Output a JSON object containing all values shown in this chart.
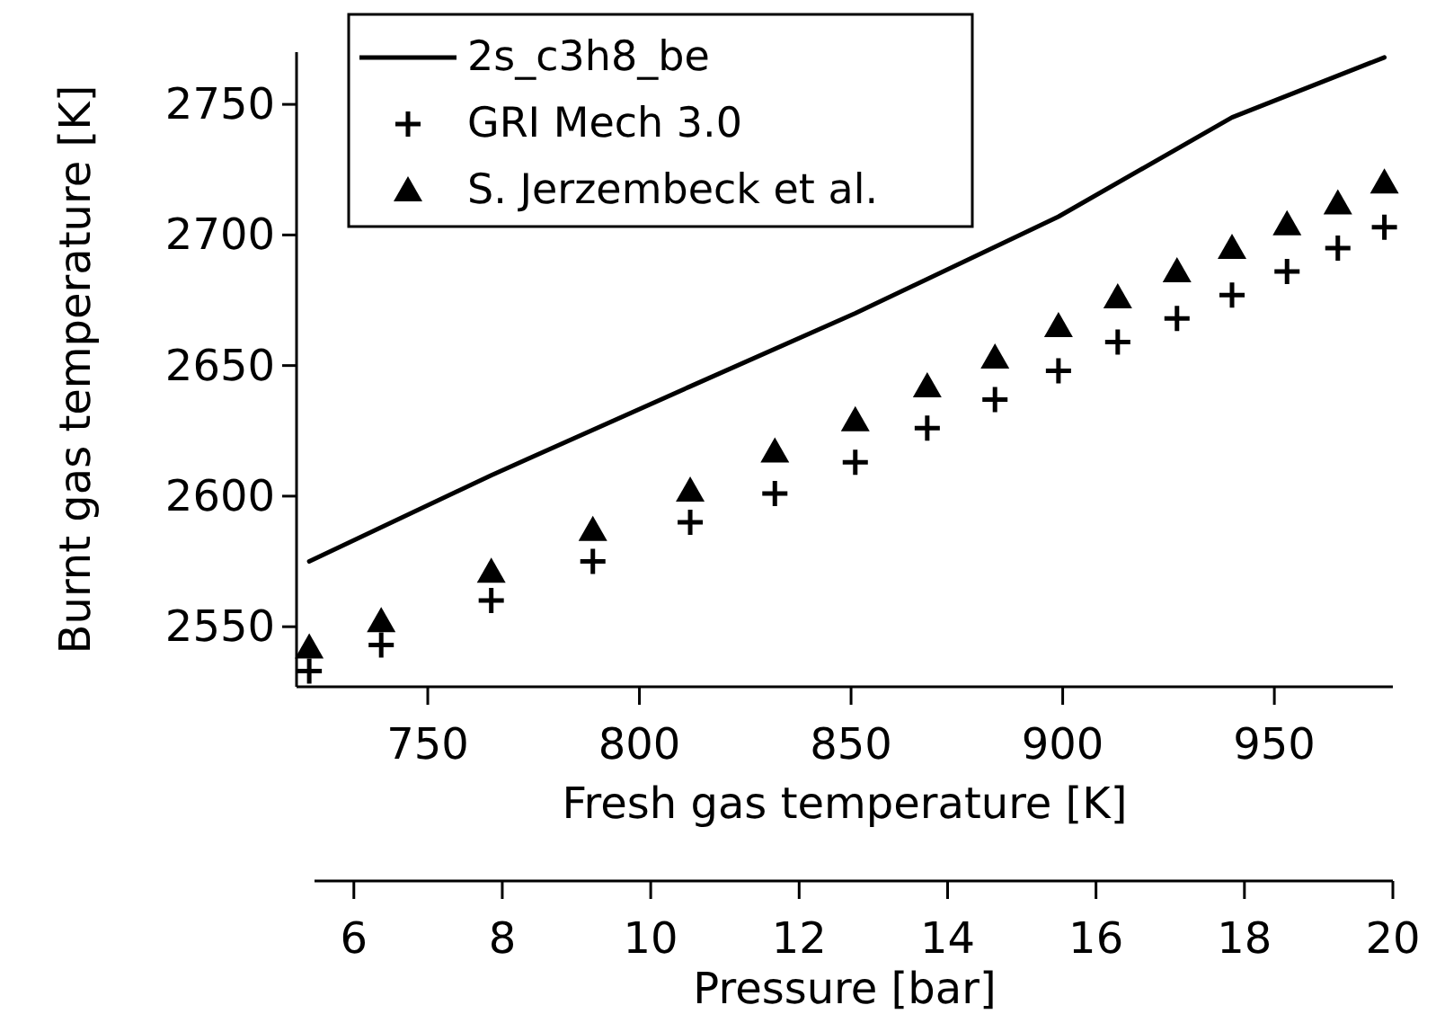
{
  "chart_data": {
    "type": "scatter",
    "xlabel": "Fresh gas temperature [K]",
    "ylabel": "Burnt gas temperature [K]",
    "x2label": "Pressure [bar]",
    "xlim": [
      719,
      978
    ],
    "xticks": [
      750,
      800,
      850,
      900,
      950
    ],
    "ylim": [
      2527,
      2770
    ],
    "yticks": [
      2550,
      2600,
      2650,
      2700,
      2750
    ],
    "x2lim": [
      5.47,
      20
    ],
    "x2ticks": [
      6,
      8,
      10,
      12,
      14,
      16,
      18,
      20
    ],
    "legend": "top left",
    "grid": false,
    "series": [
      {
        "name": "2s_c3h8_be",
        "type": "line",
        "color": "#000000",
        "marker": "none",
        "line_style": "solid",
        "x": [
          722,
          765,
          812,
          851,
          899,
          940,
          976
        ],
        "values": [
          2575,
          2608,
          2642,
          2670,
          2707,
          2745,
          2768
        ]
      },
      {
        "name": "GRI Mech 3.0",
        "color": "#000000",
        "marker": "cross",
        "x": [
          722,
          739,
          765,
          789,
          812,
          832,
          851,
          868,
          884,
          899,
          913,
          927,
          940,
          953,
          965,
          976
        ],
        "values": [
          2533,
          2543,
          2560,
          2575,
          2590,
          2601,
          2613,
          2626,
          2637,
          2648,
          2659,
          2668,
          2677,
          2686,
          2695,
          2703
        ]
      },
      {
        "name": "S. Jerzembeck et al.",
        "color": "#000000",
        "marker": "triangle",
        "x": [
          722,
          739,
          765,
          789,
          812,
          832,
          851,
          868,
          884,
          899,
          913,
          927,
          940,
          953,
          965,
          976
        ],
        "values": [
          2542,
          2552,
          2571,
          2587,
          2602,
          2617,
          2629,
          2642,
          2653,
          2665,
          2676,
          2686,
          2695,
          2704,
          2712,
          2720
        ]
      }
    ]
  }
}
